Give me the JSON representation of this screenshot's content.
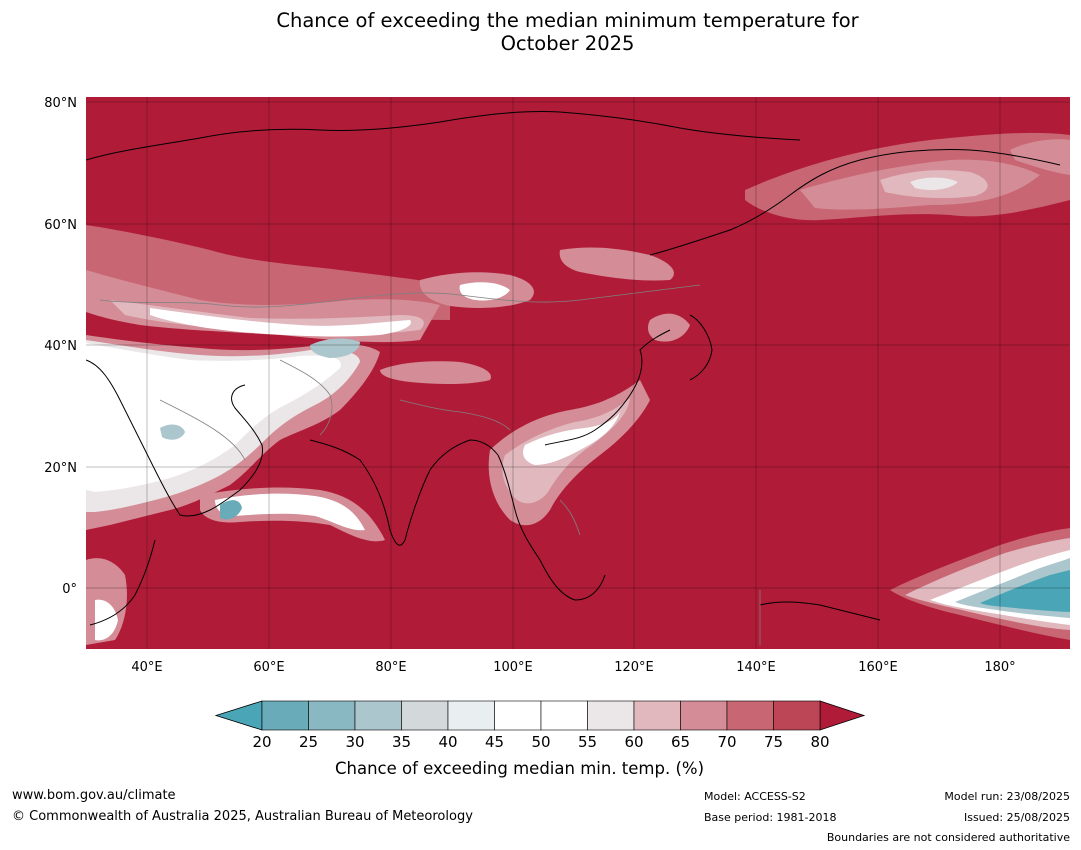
{
  "title": {
    "line1": "Chance of exceeding the median minimum temperature for",
    "line2": "October 2025"
  },
  "map": {
    "type": "map",
    "lat_ticks": [
      "80°N",
      "60°N",
      "40°N",
      "20°N",
      "0°"
    ],
    "lon_ticks": [
      "40°E",
      "60°E",
      "80°E",
      "100°E",
      "120°E",
      "140°E",
      "160°E",
      "180°"
    ],
    "lat_range": [
      -10,
      81
    ],
    "lon_range": [
      30,
      191
    ]
  },
  "colorbar": {
    "label": "Chance of exceeding median min. temp. (%)",
    "ticks": [
      "20",
      "25",
      "30",
      "35",
      "40",
      "45",
      "50",
      "55",
      "60",
      "65",
      "70",
      "75",
      "80"
    ],
    "colors": [
      "#6aabb9",
      "#89b8c3",
      "#abc6cc",
      "#d3d8db",
      "#e9eff1",
      "#ffffff",
      "#ffffff",
      "#ebe6e7",
      "#e0b8be",
      "#d48c97",
      "#c86673",
      "#bd4656"
    ],
    "under_color": "#4aa6b7",
    "over_color": "#b01b37"
  },
  "footer": {
    "website": "www.bom.gov.au/climate",
    "copyright": "© Commonwealth of Australia 2025, Australian Bureau of Meteorology",
    "model": "Model: ACCESS-S2",
    "base_period": "Base period: 1981-2018",
    "model_run": "Model run: 23/08/2025",
    "issued": "Issued: 25/08/2025",
    "disclaimer": "Boundaries are not considered authoritative"
  }
}
